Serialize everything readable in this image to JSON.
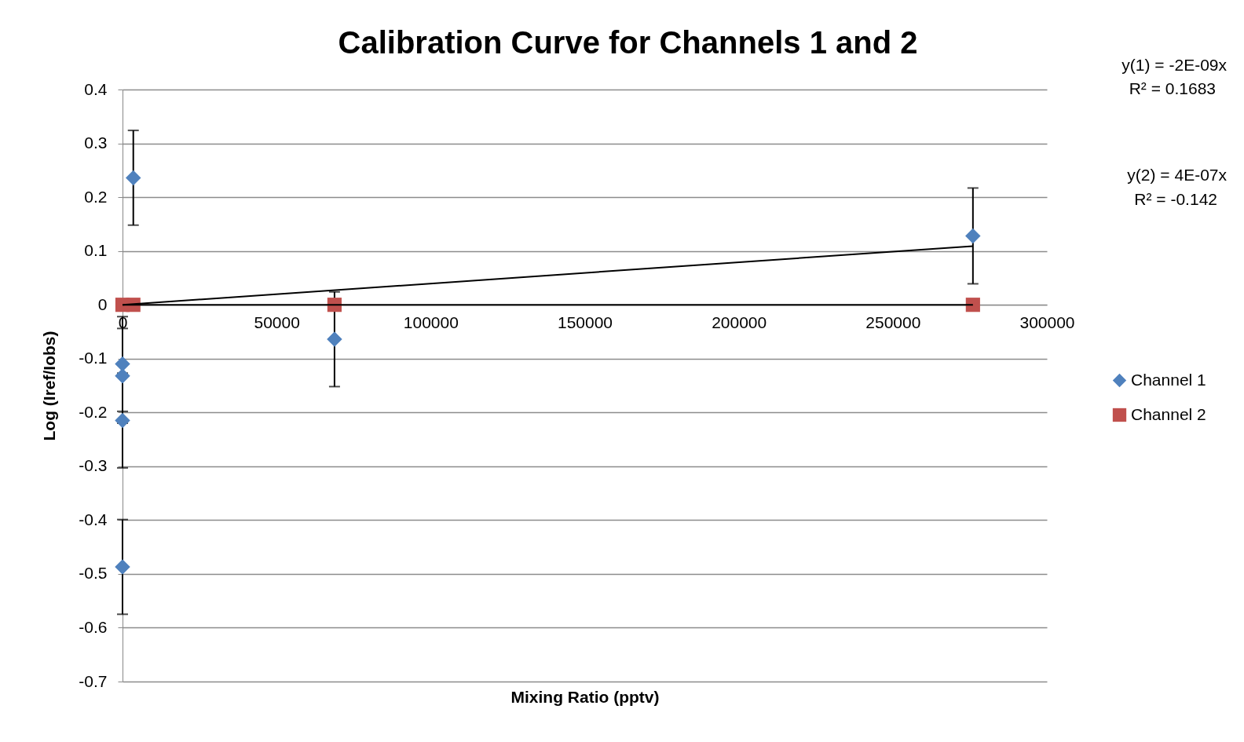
{
  "chart_data": {
    "type": "scatter",
    "title": "Calibration Curve for Channels 1 and 2",
    "xlabel": "Mixing Ratio (pptv)",
    "ylabel": "Log (Iref/Iobs)",
    "xlim": [
      0,
      300000
    ],
    "xticks": [
      0,
      50000,
      100000,
      150000,
      200000,
      250000,
      300000
    ],
    "ylim": [
      -0.7,
      0.4
    ],
    "yticks": [
      -0.7,
      -0.6,
      -0.5,
      -0.4,
      -0.3,
      -0.2,
      -0.1,
      0,
      0.1,
      0.2,
      0.3,
      0.4
    ],
    "grid": "y",
    "legend": "right",
    "series": [
      {
        "name": "Channel 1",
        "color": "#4f81bd",
        "marker": "diamond",
        "x": [
          3500,
          0,
          0,
          0,
          0,
          68800,
          276000
        ],
        "values": [
          0.236,
          -0.11,
          -0.132,
          -0.215,
          -0.487,
          -0.064,
          0.128
        ],
        "errors": [
          0.088,
          0.088,
          0.088,
          0.088,
          0.088,
          0.088,
          0.089
        ]
      },
      {
        "name": "Channel 2",
        "color": "#c0504d",
        "marker": "square",
        "x": [
          0,
          3500,
          68800,
          276000
        ],
        "values": [
          0,
          0,
          0,
          0
        ]
      },
      {
        "type": "line",
        "color": "#000000",
        "marker": "none",
        "x": [
          0,
          276000
        ],
        "values": [
          0,
          0
        ]
      },
      {
        "type": "line",
        "color": "#000000",
        "marker": "none",
        "x": [
          0,
          276000
        ],
        "values": [
          0,
          0.109
        ]
      }
    ],
    "annotations": [
      "y(1) = -2E-09x",
      "R² = 0.1683",
      "y(2) = 4E-07x",
      "R² = -0.142"
    ]
  }
}
